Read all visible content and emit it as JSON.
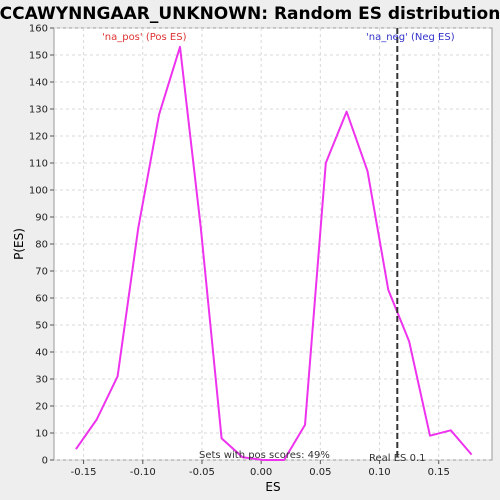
{
  "chart_data": {
    "type": "line",
    "title": "CCAWYNNGAAR_UNKNOWN: Random ES distribution",
    "xlabel": "ES",
    "ylabel": "P(ES)",
    "xlim": [
      -0.175,
      0.195
    ],
    "ylim": [
      0,
      160
    ],
    "x_ticks": [
      -0.15,
      -0.1,
      -0.05,
      0.0,
      0.05,
      0.1,
      0.15
    ],
    "x_tick_labels": [
      "-0.15",
      "-0.10",
      "-0.05",
      "0.00",
      "0.05",
      "0.10",
      "0.15"
    ],
    "y_ticks": [
      0,
      10,
      20,
      30,
      40,
      50,
      60,
      70,
      80,
      90,
      100,
      110,
      120,
      130,
      140,
      150,
      160
    ],
    "y_tick_labels": [
      "0",
      "10",
      "20",
      "30",
      "40",
      "50",
      "60",
      "70",
      "80",
      "90",
      "100",
      "110",
      "120",
      "130",
      "140",
      "150",
      "160"
    ],
    "grid": true,
    "series": [
      {
        "color": "#ee33ee",
        "x": [
          -0.1565,
          -0.1389,
          -0.1213,
          -0.1038,
          -0.0862,
          -0.0686,
          -0.051,
          -0.0334,
          -0.0158,
          0.0018,
          0.0194,
          0.037,
          0.0546,
          0.0722,
          0.0898,
          0.1074,
          0.125,
          0.1426,
          0.1602,
          0.1778
        ],
        "y": [
          4,
          15,
          31,
          86,
          128,
          153,
          86,
          8,
          1,
          0,
          0,
          13,
          110,
          129,
          107,
          63,
          44,
          9,
          11,
          2
        ]
      }
    ],
    "real_es": {
      "x": 0.115,
      "color": "#333333",
      "label": "Real ES 0.1"
    },
    "annotations": {
      "pos": {
        "text": "'na_pos' (Pos ES)",
        "color": "#dd3333"
      },
      "neg": {
        "text": "'na_neg' (Neg ES)",
        "color": "#3333cc"
      },
      "pos_scores": {
        "text": "Sets with pos scores: 49%",
        "color": "#333333"
      }
    },
    "plot_bg": "#ffffff",
    "grid_color": "#d8d8d8"
  }
}
